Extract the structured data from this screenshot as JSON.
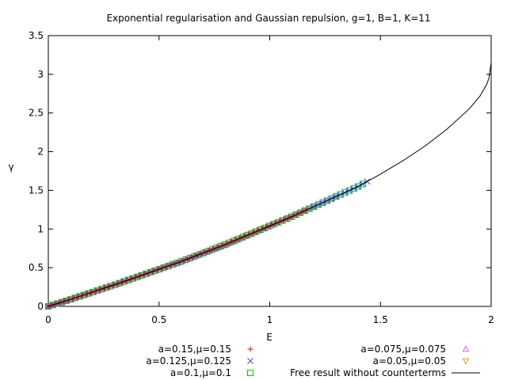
{
  "chart_data": {
    "type": "scatter",
    "title": "Exponential regularisation and Gaussian repulsion, g=1, B=1, K=11",
    "xlabel": "E",
    "ylabel": "γ",
    "xlim": [
      0,
      2
    ],
    "ylim": [
      0,
      3.5
    ],
    "xticks": [
      0,
      0.5,
      1,
      1.5,
      2
    ],
    "xtick_labels": [
      "0",
      "0.5",
      "1",
      "1.5",
      "2"
    ],
    "yticks": [
      0,
      0.5,
      1,
      1.5,
      2,
      2.5,
      3,
      3.5
    ],
    "ytick_labels": [
      "0",
      "0.5",
      "1",
      "1.5",
      "2",
      "2.5",
      "3",
      "3.5"
    ],
    "grid": false,
    "legend_position": "bottom",
    "series": [
      {
        "name": "a=0.15,μ=0.15",
        "marker": "plus",
        "color": "#ff0000",
        "x_start": 0.0,
        "x_end": 1.16,
        "num_points": 60
      },
      {
        "name": "a=0.125,μ=0.125",
        "marker": "cross",
        "color": "#4040ff",
        "x_start": 0.0,
        "x_end": 1.44,
        "num_points": 72
      },
      {
        "name": "a=0.1,μ=0.1",
        "marker": "square",
        "color": "#00d000",
        "x_start": 0.0,
        "x_end": 1.42,
        "num_points": 72
      },
      {
        "name": "a=0.075,μ=0.075",
        "marker": "triangle-up",
        "color": "#e060e0",
        "x_start": 0.0,
        "x_end": 1.3,
        "num_points": 64
      },
      {
        "name": "a=0.05,μ=0.05",
        "marker": "triangle-down",
        "color": "#e0a000",
        "x_start": 0.0,
        "x_end": 1.2,
        "num_points": 60
      },
      {
        "name": "Free result without counterterms",
        "marker": "line",
        "color": "#000000",
        "x_start": 0.0,
        "x_end": 2.0,
        "points": [
          [
            0,
            0
          ],
          [
            0.1,
            0.09
          ],
          [
            0.2,
            0.185
          ],
          [
            0.3,
            0.28
          ],
          [
            0.4,
            0.38
          ],
          [
            0.5,
            0.48
          ],
          [
            0.6,
            0.58
          ],
          [
            0.7,
            0.69
          ],
          [
            0.8,
            0.8
          ],
          [
            0.9,
            0.92
          ],
          [
            1.0,
            1.04
          ],
          [
            1.1,
            1.16
          ],
          [
            1.2,
            1.29
          ],
          [
            1.3,
            1.42
          ],
          [
            1.4,
            1.55
          ],
          [
            1.5,
            1.71
          ],
          [
            1.6,
            1.88
          ],
          [
            1.7,
            2.07
          ],
          [
            1.8,
            2.29
          ],
          [
            1.9,
            2.55
          ],
          [
            1.95,
            2.72
          ],
          [
            1.98,
            2.87
          ],
          [
            1.99,
            2.95
          ],
          [
            1.995,
            3.05
          ],
          [
            2.0,
            3.15
          ]
        ]
      }
    ]
  }
}
